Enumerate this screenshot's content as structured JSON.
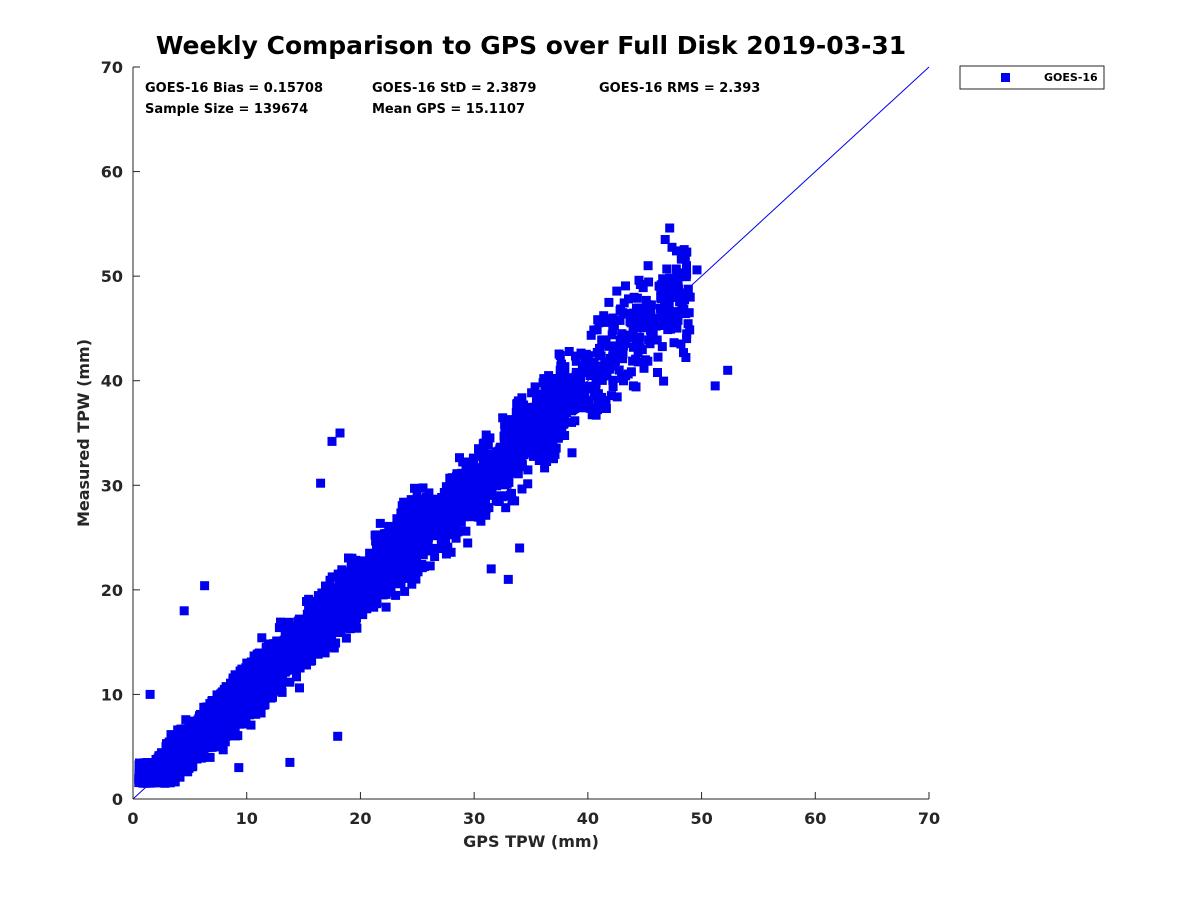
{
  "chart_data": {
    "type": "scatter",
    "title": "Weekly Comparison to GPS over Full Disk 2019-03-31",
    "xlabel": "GPS TPW (mm)",
    "ylabel": "Measured TPW (mm)",
    "xlim": [
      0,
      70
    ],
    "ylim": [
      0,
      70
    ],
    "xticks": [
      "0",
      "10",
      "20",
      "30",
      "40",
      "50",
      "60",
      "70"
    ],
    "yticks": [
      "0",
      "10",
      "20",
      "30",
      "40",
      "50",
      "60",
      "70"
    ],
    "grid": false,
    "legend_position": "top-right-outside",
    "series": [
      {
        "name": "GOES-16",
        "marker": "square",
        "color": "#0000ee",
        "x_range": [
          0,
          52.5
        ],
        "y_range": [
          1.5,
          55
        ],
        "note": "139674 points clustered along the 1:1 line"
      }
    ],
    "reference_line": {
      "name": "1:1 line",
      "x": [
        0,
        70
      ],
      "y": [
        0,
        70
      ],
      "color": "#0000ee"
    },
    "outliers": [
      {
        "x": 47.2,
        "y": 54.6
      },
      {
        "x": 46.8,
        "y": 53.5
      },
      {
        "x": 48.7,
        "y": 52.3
      },
      {
        "x": 49.6,
        "y": 50.6
      },
      {
        "x": 44.5,
        "y": 49.6
      },
      {
        "x": 47.2,
        "y": 49.8
      },
      {
        "x": 45.3,
        "y": 51.0
      },
      {
        "x": 52.3,
        "y": 41.0
      },
      {
        "x": 51.2,
        "y": 39.5
      },
      {
        "x": 33.0,
        "y": 21.0
      },
      {
        "x": 31.5,
        "y": 22.0
      },
      {
        "x": 18.2,
        "y": 35.0
      },
      {
        "x": 17.5,
        "y": 34.2
      },
      {
        "x": 16.5,
        "y": 30.2
      },
      {
        "x": 29.8,
        "y": 27.0
      },
      {
        "x": 6.3,
        "y": 20.4
      },
      {
        "x": 4.5,
        "y": 18.0
      },
      {
        "x": 1.5,
        "y": 10.0
      },
      {
        "x": 36.3,
        "y": 35.5
      },
      {
        "x": 34.0,
        "y": 24.0
      },
      {
        "x": 49.0,
        "y": 48.0
      },
      {
        "x": 9.3,
        "y": 3.0
      },
      {
        "x": 13.8,
        "y": 3.5
      },
      {
        "x": 18.0,
        "y": 6.0
      }
    ],
    "stats": {
      "bias": "GOES-16 Bias = 0.15708",
      "std": "GOES-16 StD = 2.3879",
      "rms": "GOES-16 RMS = 2.393",
      "sample_size": "Sample Size = 139674",
      "mean_gps": "Mean GPS = 15.1107"
    }
  }
}
